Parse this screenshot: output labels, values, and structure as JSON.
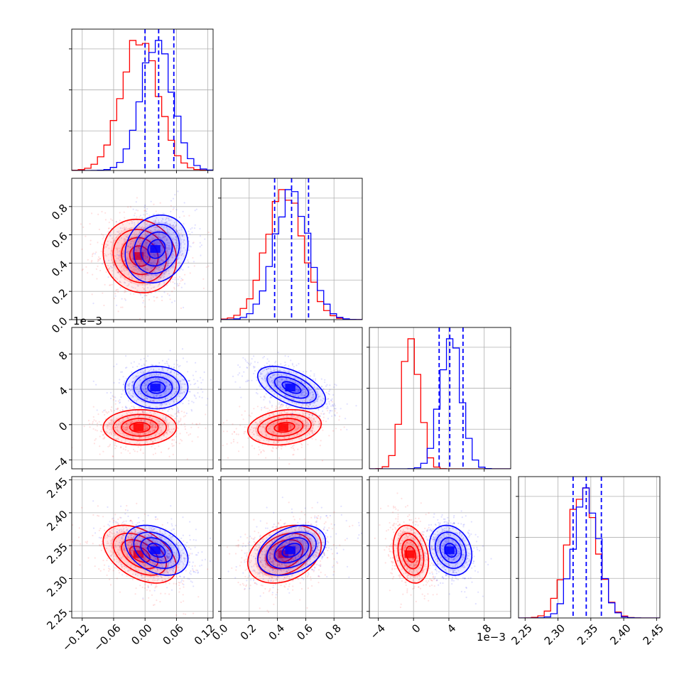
{
  "chart_data": {
    "type": "corner",
    "title": "",
    "parameters": [
      {
        "range": [
          -0.14,
          0.13
        ],
        "ticks": [
          -0.12,
          -0.06,
          0.0,
          0.06,
          0.12
        ],
        "tick_labels": [
          "−0.12",
          "−0.06",
          "0.00",
          "0.06",
          "0.12"
        ],
        "offset_label": ""
      },
      {
        "range": [
          0.0,
          1.0
        ],
        "ticks": [
          0.0,
          0.2,
          0.4,
          0.6,
          0.8
        ],
        "tick_labels": [
          "0.0",
          "0.2",
          "0.4",
          "0.6",
          "0.8"
        ],
        "offset_label": ""
      },
      {
        "range": [
          -5.0,
          11.0
        ],
        "ticks": [
          -4,
          0,
          4,
          8
        ],
        "tick_labels": [
          "−4",
          "0",
          "4",
          "8"
        ],
        "offset_label": "1e−3"
      },
      {
        "range": [
          2.24,
          2.455
        ],
        "ticks": [
          2.25,
          2.3,
          2.35,
          2.4,
          2.45
        ],
        "tick_labels": [
          "2.25",
          "2.30",
          "2.35",
          "2.40",
          "2.45"
        ],
        "offset_label": ""
      }
    ],
    "series": [
      {
        "color": "#ff0000",
        "means": [
          -0.01,
          0.45,
          -0.3,
          2.337
        ],
        "sds": [
          0.035,
          0.13,
          1.0,
          0.022
        ],
        "corr": [
          [
            1,
            0,
            0,
            0
          ],
          [
            0,
            1,
            0,
            0.3
          ],
          [
            0,
            0,
            1,
            0
          ],
          [
            0,
            0.3,
            0,
            1
          ]
        ]
      },
      {
        "color": "#0000ff",
        "means": [
          0.022,
          0.5,
          4.2,
          2.343
        ],
        "sds": [
          0.03,
          0.12,
          1.2,
          0.019
        ],
        "corr": [
          [
            1,
            0,
            0,
            0
          ],
          [
            0,
            1,
            0,
            0.3
          ],
          [
            0,
            0,
            1,
            0
          ],
          [
            0,
            0.3,
            0,
            1
          ]
        ]
      }
    ],
    "quantile_lines": {
      "color": "#0000ff",
      "values": [
        [
          0.0,
          0.026,
          0.055
        ],
        [
          0.38,
          0.5,
          0.62
        ],
        [
          2.9,
          4.1,
          5.6
        ],
        [
          2.323,
          2.343,
          2.366
        ]
      ]
    },
    "pair_corr_overrides": {
      "0-1": {
        "red": -0.1,
        "blue": 0.15
      },
      "0-3": {
        "red": -0.45,
        "blue": -0.35
      },
      "1-2": {
        "red": 0.2,
        "blue": -0.55
      },
      "1-3": {
        "red": 0.3,
        "blue": 0.35
      },
      "2-3": {
        "red": -0.25,
        "blue": -0.2
      }
    },
    "grid": true,
    "legend": "none"
  }
}
